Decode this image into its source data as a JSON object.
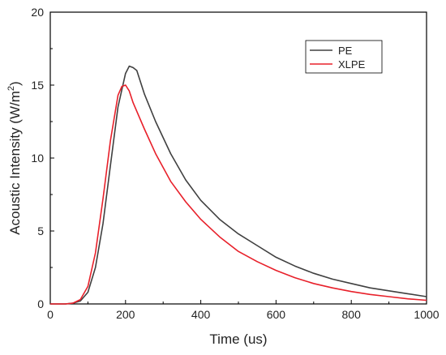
{
  "chart_data": {
    "type": "line",
    "title": "",
    "xlabel": "Time (us)",
    "ylabel": {
      "main": "Acoustic Intensity (W/m",
      "sup": "2",
      "end": ")"
    },
    "xlim": [
      0,
      1000
    ],
    "ylim": [
      0,
      20
    ],
    "xticks": [
      "0",
      "200",
      "400",
      "600",
      "800",
      "1000"
    ],
    "yticks": [
      "0",
      "5",
      "10",
      "15",
      "20"
    ],
    "grid": false,
    "legend_position": "top-right",
    "series": [
      {
        "name": "PE",
        "color": "#404040",
        "x": [
          0,
          40,
          60,
          80,
          100,
          120,
          140,
          160,
          180,
          200,
          210,
          220,
          230,
          250,
          280,
          320,
          360,
          400,
          450,
          500,
          550,
          600,
          650,
          700,
          750,
          800,
          850,
          900,
          950,
          1000
        ],
        "y": [
          0,
          0,
          0.05,
          0.2,
          0.8,
          2.5,
          5.5,
          9.5,
          13.5,
          15.8,
          16.3,
          16.2,
          16.0,
          14.4,
          12.5,
          10.3,
          8.5,
          7.1,
          5.8,
          4.8,
          4.0,
          3.2,
          2.6,
          2.1,
          1.7,
          1.4,
          1.1,
          0.9,
          0.7,
          0.5
        ]
      },
      {
        "name": "XLPE",
        "color": "#e8202a",
        "x": [
          0,
          40,
          60,
          80,
          100,
          120,
          140,
          160,
          180,
          190,
          200,
          210,
          220,
          250,
          280,
          320,
          360,
          400,
          450,
          500,
          550,
          600,
          650,
          700,
          750,
          800,
          850,
          900,
          950,
          1000
        ],
        "y": [
          0,
          0,
          0.05,
          0.3,
          1.2,
          3.5,
          7.2,
          11.2,
          14.3,
          14.9,
          15.0,
          14.6,
          13.8,
          12.0,
          10.3,
          8.4,
          7.0,
          5.8,
          4.6,
          3.6,
          2.9,
          2.3,
          1.8,
          1.4,
          1.1,
          0.85,
          0.65,
          0.5,
          0.35,
          0.25
        ]
      }
    ]
  }
}
